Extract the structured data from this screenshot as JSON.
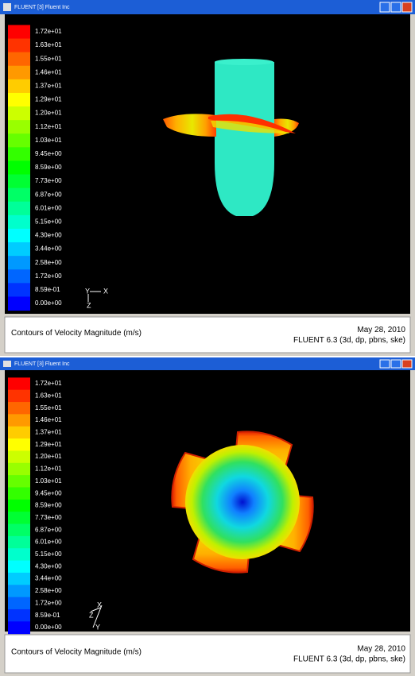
{
  "windows": [
    {
      "title": "FLUENT [3] Fluent Inc",
      "colorbar_labels": [
        "1.72e+01",
        "1.63e+01",
        "1.55e+01",
        "1.46e+01",
        "1.37e+01",
        "1.29e+01",
        "1.20e+01",
        "1.12e+01",
        "1.03e+01",
        "9.45e+00",
        "8.59e+00",
        "7.73e+00",
        "6.87e+00",
        "6.01e+00",
        "5.15e+00",
        "4.30e+00",
        "3.44e+00",
        "2.58e+00",
        "1.72e+00",
        "8.59e-01",
        "0.00e+00"
      ],
      "axes": [
        "Y",
        "X",
        "Z"
      ],
      "caption": "Contours of Velocity Magnitude (m/s)",
      "date": "May 28, 2010",
      "solver": "FLUENT 6.3 (3d, dp, pbns, ske)"
    },
    {
      "title": "FLUENT [3] Fluent Inc",
      "colorbar_labels": [
        "1.72e+01",
        "1.63e+01",
        "1.55e+01",
        "1.46e+01",
        "1.37e+01",
        "1.29e+01",
        "1.20e+01",
        "1.12e+01",
        "1.03e+01",
        "9.45e+00",
        "8.59e+00",
        "7.73e+00",
        "6.87e+00",
        "6.01e+00",
        "5.15e+00",
        "4.30e+00",
        "3.44e+00",
        "2.58e+00",
        "1.72e+00",
        "8.59e-01",
        "0.00e+00"
      ],
      "axes": [
        "X",
        "Y",
        "Z"
      ],
      "caption": "Contours of Velocity Magnitude (m/s)",
      "date": "May 28, 2010",
      "solver": "FLUENT 6.3 (3d, dp, pbns, ske)"
    }
  ]
}
